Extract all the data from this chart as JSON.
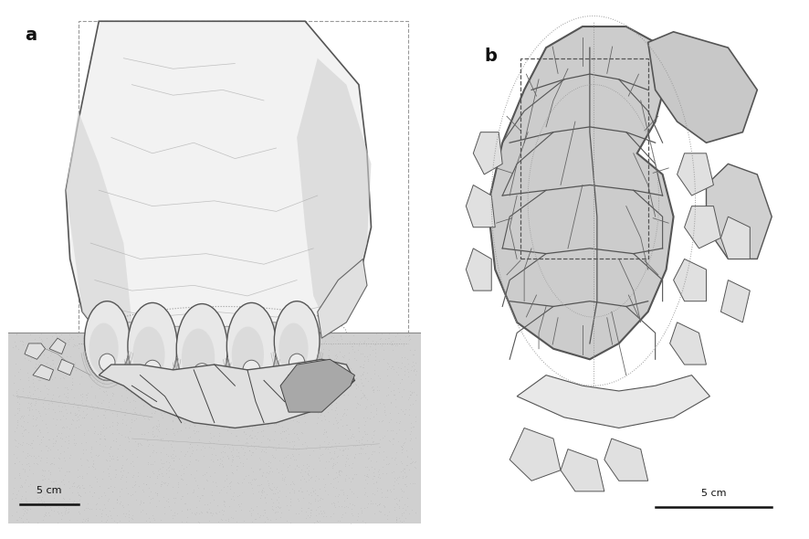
{
  "background_color": "#ffffff",
  "panel_a_label": "a",
  "panel_b_label": "b",
  "scale_bar_text": "5 cm",
  "fig_width": 8.86,
  "fig_height": 5.9,
  "dpi": 100,
  "label_fontsize": 14,
  "scalebar_fontsize": 8,
  "outline_color": "#333333",
  "light_gray": "#d8d8d8",
  "mid_gray": "#bbbbbb",
  "dark_gray": "#888888",
  "shell_fill": "#cccccc",
  "shell_bg": "#c8c8c8",
  "sediment_fill": "#d0d0d0",
  "foot_light": "#f0f0f0",
  "foot_mid": "#e0e0e0",
  "foot_dark": "#c0c0c0"
}
